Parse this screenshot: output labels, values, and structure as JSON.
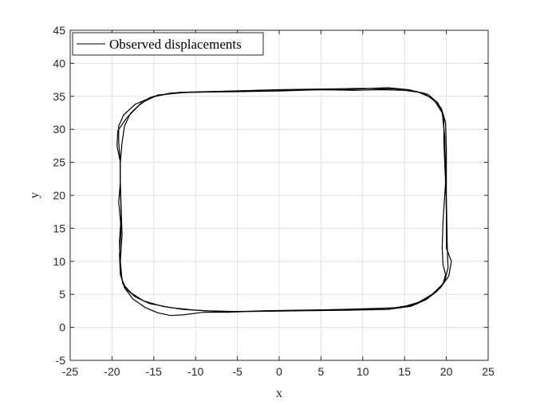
{
  "chart_data": {
    "type": "line",
    "title": "",
    "xlabel": "x",
    "ylabel": "y",
    "xlim": [
      -25,
      25
    ],
    "ylim": [
      -5,
      45
    ],
    "xticks": [
      -25,
      -20,
      -15,
      -10,
      -5,
      0,
      5,
      10,
      15,
      20,
      25
    ],
    "yticks": [
      -5,
      0,
      5,
      10,
      15,
      20,
      25,
      30,
      35,
      40,
      45
    ],
    "grid": true,
    "legend_position": "top-left",
    "colors": {
      "line": "#000000",
      "grid": "#e0e0e0",
      "axes": "#262626"
    },
    "series": [
      {
        "name": "Observed displacements",
        "laps": [
          [
            [
              -19.0,
              25.0
            ],
            [
              -19.2,
              28.0
            ],
            [
              -19.2,
              30.5
            ],
            [
              -18.6,
              32.2
            ],
            [
              -17.2,
              33.8
            ],
            [
              -15.0,
              35.0
            ],
            [
              -12.0,
              35.6
            ],
            [
              -6.0,
              35.8
            ],
            [
              0.0,
              36.0
            ],
            [
              5.0,
              36.1
            ],
            [
              10.0,
              36.2
            ],
            [
              14.0,
              36.1
            ],
            [
              16.5,
              35.7
            ],
            [
              18.2,
              34.8
            ],
            [
              19.4,
              33.2
            ],
            [
              19.9,
              31.0
            ],
            [
              20.0,
              27.0
            ],
            [
              20.0,
              20.0
            ],
            [
              20.1,
              13.0
            ],
            [
              20.2,
              9.0
            ],
            [
              19.8,
              7.0
            ],
            [
              18.9,
              5.5
            ],
            [
              17.6,
              4.2
            ],
            [
              15.8,
              3.2
            ],
            [
              13.0,
              2.7
            ],
            [
              8.0,
              2.6
            ],
            [
              2.0,
              2.5
            ],
            [
              -3.0,
              2.4
            ],
            [
              -7.0,
              2.4
            ],
            [
              -10.0,
              2.6
            ],
            [
              -13.0,
              3.0
            ],
            [
              -15.5,
              3.6
            ],
            [
              -17.2,
              4.6
            ],
            [
              -18.3,
              5.8
            ],
            [
              -18.8,
              7.2
            ],
            [
              -19.0,
              10.0
            ],
            [
              -18.8,
              14.0
            ],
            [
              -18.9,
              18.0
            ],
            [
              -19.0,
              22.0
            ],
            [
              -19.0,
              25.0
            ]
          ],
          [
            [
              -19.0,
              25.0
            ],
            [
              -18.8,
              28.0
            ],
            [
              -18.5,
              30.5
            ],
            [
              -17.8,
              32.4
            ],
            [
              -16.5,
              34.0
            ],
            [
              -14.5,
              35.2
            ],
            [
              -11.0,
              35.6
            ],
            [
              -5.0,
              35.7
            ],
            [
              0.0,
              35.8
            ],
            [
              5.0,
              36.0
            ],
            [
              9.0,
              35.9
            ],
            [
              12.0,
              36.0
            ],
            [
              15.0,
              35.9
            ],
            [
              17.3,
              35.5
            ],
            [
              18.6,
              34.3
            ],
            [
              19.5,
              32.5
            ],
            [
              19.8,
              29.0
            ],
            [
              19.9,
              24.0
            ],
            [
              20.0,
              17.0
            ],
            [
              20.0,
              12.0
            ],
            [
              20.6,
              10.0
            ],
            [
              20.3,
              7.8
            ],
            [
              19.3,
              6.0
            ],
            [
              17.8,
              4.5
            ],
            [
              16.0,
              3.4
            ],
            [
              13.5,
              2.9
            ],
            [
              8.0,
              2.7
            ],
            [
              2.0,
              2.6
            ],
            [
              -2.0,
              2.5
            ],
            [
              -6.0,
              2.3
            ],
            [
              -9.0,
              2.3
            ],
            [
              -11.5,
              1.9
            ],
            [
              -13.0,
              1.8
            ],
            [
              -14.5,
              2.2
            ],
            [
              -16.0,
              3.0
            ],
            [
              -17.5,
              4.3
            ],
            [
              -18.5,
              6.0
            ],
            [
              -19.0,
              8.0
            ],
            [
              -19.1,
              11.0
            ],
            [
              -18.9,
              15.0
            ],
            [
              -19.2,
              19.0
            ],
            [
              -19.0,
              22.0
            ],
            [
              -19.0,
              25.0
            ]
          ],
          [
            [
              -19.0,
              25.0
            ],
            [
              -19.4,
              27.5
            ],
            [
              -19.3,
              29.8
            ],
            [
              -18.2,
              31.8
            ],
            [
              -16.8,
              33.6
            ],
            [
              -15.5,
              34.8
            ],
            [
              -13.0,
              35.5
            ],
            [
              -8.0,
              35.7
            ],
            [
              -2.0,
              35.9
            ],
            [
              3.0,
              36.0
            ],
            [
              8.0,
              36.0
            ],
            [
              11.0,
              36.2
            ],
            [
              13.0,
              36.3
            ],
            [
              15.5,
              36.0
            ],
            [
              17.8,
              35.3
            ],
            [
              19.0,
              34.0
            ],
            [
              19.7,
              32.0
            ],
            [
              19.7,
              28.0
            ],
            [
              19.9,
              22.0
            ],
            [
              19.6,
              16.0
            ],
            [
              19.5,
              12.0
            ],
            [
              19.6,
              9.5
            ],
            [
              19.9,
              8.0
            ],
            [
              19.6,
              6.6
            ],
            [
              18.3,
              5.0
            ],
            [
              16.7,
              3.8
            ],
            [
              14.5,
              3.0
            ],
            [
              10.0,
              2.8
            ],
            [
              4.0,
              2.6
            ],
            [
              -1.0,
              2.5
            ],
            [
              -5.0,
              2.4
            ],
            [
              -8.5,
              2.5
            ],
            [
              -11.5,
              2.7
            ],
            [
              -14.0,
              3.2
            ],
            [
              -16.2,
              4.0
            ],
            [
              -17.7,
              5.2
            ],
            [
              -18.7,
              6.6
            ],
            [
              -19.0,
              9.0
            ],
            [
              -19.1,
              13.0
            ],
            [
              -18.9,
              17.0
            ],
            [
              -19.0,
              21.0
            ],
            [
              -19.0,
              25.0
            ]
          ]
        ]
      }
    ]
  }
}
